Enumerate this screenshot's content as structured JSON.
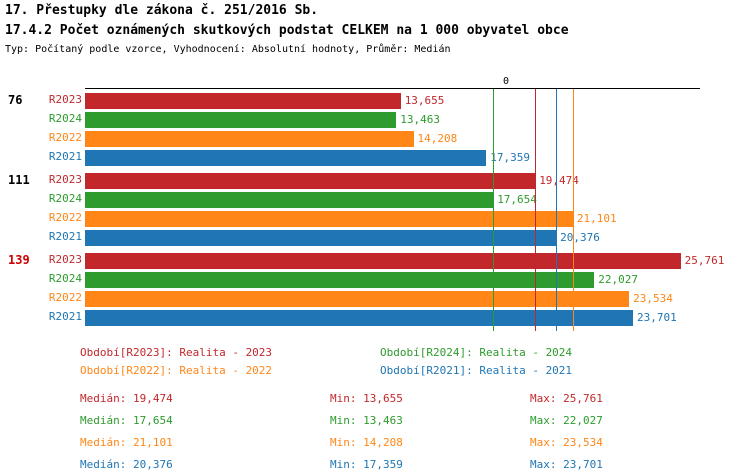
{
  "header": {
    "title_line1": "17. Přestupky dle zákona č. 251/2016 Sb.",
    "title_line2": "17.4.2 Počet oznámených skutkových podstat CELKEM na 1 000 obyvatel obce",
    "subtitle": "Typ: Počítaný podle vzorce, Vyhodnocení: Absolutní hodnoty, Průměr: Medián"
  },
  "colors": {
    "R2023": "#c2282b",
    "R2024": "#2d9b2d",
    "R2022": "#ff8617",
    "R2021": "#2076b4",
    "group_label_default": "#000000",
    "group_label_highlight": "#cc0000",
    "axis": "#000000"
  },
  "chart_data": {
    "type": "bar",
    "orientation": "horizontal",
    "x_axis": {
      "tick_label": "0",
      "xlim": [
        0,
        26600
      ],
      "grid": false
    },
    "series_order": [
      "R2023",
      "R2024",
      "R2022",
      "R2021"
    ],
    "groups": [
      {
        "label": "76",
        "highlight": false,
        "bars": [
          {
            "series": "R2023",
            "value": 13655,
            "label": "13,655"
          },
          {
            "series": "R2024",
            "value": 13463,
            "label": "13,463"
          },
          {
            "series": "R2022",
            "value": 14208,
            "label": "14,208"
          },
          {
            "series": "R2021",
            "value": 17359,
            "label": "17,359"
          }
        ]
      },
      {
        "label": "111",
        "highlight": false,
        "bars": [
          {
            "series": "R2023",
            "value": 19474,
            "label": "19,474"
          },
          {
            "series": "R2024",
            "value": 17654,
            "label": "17,654"
          },
          {
            "series": "R2022",
            "value": 21101,
            "label": "21,101"
          },
          {
            "series": "R2021",
            "value": 20376,
            "label": "20,376"
          }
        ]
      },
      {
        "label": "139",
        "highlight": true,
        "bars": [
          {
            "series": "R2023",
            "value": 25761,
            "label": "25,761"
          },
          {
            "series": "R2024",
            "value": 22027,
            "label": "22,027"
          },
          {
            "series": "R2022",
            "value": 23534,
            "label": "23,534"
          },
          {
            "series": "R2021",
            "value": 23701,
            "label": "23,701"
          }
        ]
      }
    ],
    "median_lines": [
      {
        "series": "R2024",
        "value": 17654
      },
      {
        "series": "R2023",
        "value": 19474
      },
      {
        "series": "R2021",
        "value": 20376
      },
      {
        "series": "R2022",
        "value": 21101
      }
    ]
  },
  "legend": {
    "items": [
      {
        "series": "R2023",
        "text": "Období[R2023]: Realita - 2023",
        "col": 0,
        "row": 0
      },
      {
        "series": "R2024",
        "text": "Období[R2024]: Realita - 2024",
        "col": 1,
        "row": 0
      },
      {
        "series": "R2022",
        "text": "Období[R2022]: Realita - 2022",
        "col": 0,
        "row": 1
      },
      {
        "series": "R2021",
        "text": "Období[R2021]: Realita - 2021",
        "col": 1,
        "row": 1
      }
    ]
  },
  "stats": {
    "rows": [
      {
        "series": "R2023",
        "median": "Medián: 19,474",
        "min": "Min: 13,655",
        "max": "Max: 25,761"
      },
      {
        "series": "R2024",
        "median": "Medián: 17,654",
        "min": "Min: 13,463",
        "max": "Max: 22,027"
      },
      {
        "series": "R2022",
        "median": "Medián: 21,101",
        "min": "Min: 14,208",
        "max": "Max: 23,534"
      },
      {
        "series": "R2021",
        "median": "Medián: 20,376",
        "min": "Min: 17,359",
        "max": "Max: 23,701"
      }
    ]
  }
}
